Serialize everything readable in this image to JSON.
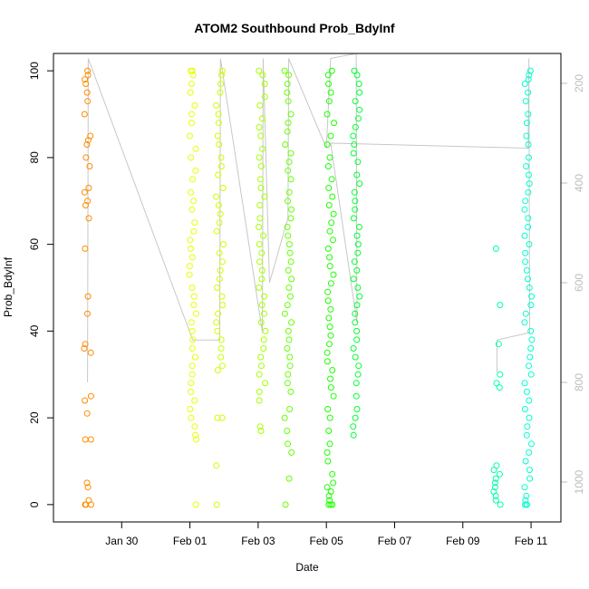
{
  "chart_data": {
    "type": "scatter",
    "title": "ATOM2 Southbound Prob_BdyInf",
    "xlabel": "Date",
    "ylabel": "Prob_BdyInf",
    "x_unit": "date",
    "xlim": [
      "2018-01-28T00:00",
      "2018-02-11T21:00"
    ],
    "ylim": [
      -4,
      104
    ],
    "x_ticks": [
      {
        "date": "2018-01-30T00:00",
        "label": "Jan 30"
      },
      {
        "date": "2018-02-01T00:00",
        "label": "Feb 01"
      },
      {
        "date": "2018-02-03T00:00",
        "label": "Feb 03"
      },
      {
        "date": "2018-02-05T00:00",
        "label": "Feb 05"
      },
      {
        "date": "2018-02-07T00:00",
        "label": "Feb 07"
      },
      {
        "date": "2018-02-09T00:00",
        "label": "Feb 09"
      },
      {
        "date": "2018-02-11T00:00",
        "label": "Feb 11"
      }
    ],
    "y_ticks": [
      0,
      20,
      40,
      60,
      80,
      100
    ],
    "right_axis": {
      "label": "",
      "lim": [
        1080,
        140
      ],
      "ticks": [
        200,
        400,
        600,
        800,
        1000
      ],
      "color": "#bdbdbd"
    },
    "marker": "open-circle",
    "grid": false,
    "legend": "none",
    "series": [
      {
        "date": "2018-01-29T00:00",
        "color": "#ff8c00",
        "y": [
          100,
          99,
          98,
          97,
          95,
          93,
          90,
          85,
          84,
          83,
          80,
          78,
          73,
          72,
          70,
          69,
          66,
          59,
          48,
          44,
          37,
          36,
          35,
          25,
          24,
          21,
          15,
          15,
          5,
          4,
          1,
          0,
          0,
          0
        ]
      },
      {
        "date": "2018-02-01T02:00",
        "color": "#e6ff00",
        "y": [
          100,
          100,
          99,
          97,
          95,
          92,
          90,
          88,
          85,
          82,
          80,
          77,
          75,
          72,
          70,
          68,
          65,
          63,
          61,
          59,
          57,
          55,
          53,
          50,
          48,
          46,
          44,
          42,
          40,
          38,
          36,
          34,
          32,
          30,
          28,
          26,
          24,
          22,
          20,
          18,
          16,
          15,
          0
        ]
      },
      {
        "date": "2018-02-01T21:00",
        "color": "#ccff00",
        "y": [
          100,
          99,
          97,
          95,
          92,
          90,
          88,
          85,
          83,
          80,
          78,
          76,
          73,
          71,
          69,
          67,
          65,
          63,
          60,
          58,
          56,
          54,
          52,
          50,
          48,
          46,
          44,
          42,
          40,
          38,
          36,
          34,
          32,
          31,
          20,
          20,
          9,
          0
        ]
      },
      {
        "date": "2018-02-03T03:00",
        "color": "#a6ff00",
        "y": [
          100,
          99,
          97,
          94,
          92,
          89,
          87,
          85,
          82,
          80,
          78,
          75,
          73,
          71,
          69,
          66,
          64,
          62,
          60,
          58,
          56,
          54,
          52,
          50,
          48,
          46,
          44,
          42,
          40,
          38,
          36,
          34,
          32,
          30,
          28,
          26,
          24,
          18,
          17
        ]
      },
      {
        "date": "2018-02-03T21:00",
        "color": "#66ff00",
        "y": [
          100,
          99,
          97,
          95,
          93,
          90,
          88,
          86,
          83,
          81,
          79,
          77,
          75,
          72,
          70,
          68,
          66,
          64,
          62,
          60,
          58,
          56,
          54,
          52,
          50,
          48,
          46,
          44,
          42,
          40,
          38,
          36,
          34,
          32,
          30,
          28,
          26,
          22,
          20,
          17,
          14,
          12,
          6,
          0
        ]
      },
      {
        "date": "2018-02-05T03:00",
        "color": "#1aff00",
        "y": [
          100,
          99,
          97,
          95,
          93,
          90,
          88,
          85,
          83,
          80,
          78,
          75,
          73,
          71,
          69,
          67,
          65,
          63,
          61,
          59,
          57,
          55,
          53,
          51,
          49,
          47,
          45,
          43,
          41,
          39,
          37,
          35,
          33,
          31,
          29,
          27,
          25,
          22,
          20,
          17,
          14,
          12,
          10,
          7,
          5,
          4,
          3,
          2,
          1,
          0,
          0,
          0
        ]
      },
      {
        "date": "2018-02-05T21:00",
        "color": "#00ff33",
        "y": [
          100,
          99,
          97,
          95,
          93,
          91,
          89,
          87,
          85,
          83,
          81,
          79,
          76,
          74,
          72,
          70,
          68,
          66,
          64,
          62,
          60,
          58,
          56,
          54,
          52,
          50,
          48,
          46,
          44,
          42,
          40,
          38,
          36,
          34,
          32,
          30,
          28,
          25,
          22,
          20,
          18,
          16
        ]
      },
      {
        "date": "2018-02-10T00:00",
        "color": "#00ffaa",
        "y": [
          59,
          46,
          37,
          30,
          28,
          27,
          9,
          8,
          7,
          6,
          5,
          4,
          3,
          2,
          1,
          0
        ]
      },
      {
        "date": "2018-02-10T22:00",
        "color": "#00ffcc",
        "y": [
          100,
          99,
          98,
          97,
          95,
          93,
          90,
          88,
          85,
          83,
          80,
          78,
          76,
          74,
          72,
          70,
          68,
          66,
          64,
          62,
          60,
          58,
          56,
          54,
          52,
          50,
          48,
          46,
          44,
          42,
          40,
          38,
          36,
          34,
          32,
          30,
          28,
          26,
          24,
          22,
          20,
          18,
          16,
          14,
          12,
          10,
          8,
          6,
          4,
          2,
          1,
          0,
          0,
          0
        ]
      }
    ],
    "depth_trace": {
      "axis": "right",
      "color": "#c8c8c8",
      "points": [
        {
          "date": "2018-01-29T00:00",
          "v": 800
        },
        {
          "date": "2018-01-29T00:30",
          "v": 150
        },
        {
          "date": "2018-02-01T02:00",
          "v": 715
        },
        {
          "date": "2018-02-01T21:00",
          "v": 715
        },
        {
          "date": "2018-02-01T21:30",
          "v": 150
        },
        {
          "date": "2018-02-03T03:00",
          "v": 700
        },
        {
          "date": "2018-02-03T03:30",
          "v": 150
        },
        {
          "date": "2018-02-03T08:00",
          "v": 600
        },
        {
          "date": "2018-02-03T21:00",
          "v": 470
        },
        {
          "date": "2018-02-03T21:30",
          "v": 150
        },
        {
          "date": "2018-02-05T00:00",
          "v": 330
        },
        {
          "date": "2018-02-05T03:00",
          "v": 150
        },
        {
          "date": "2018-02-05T21:00",
          "v": 140
        },
        {
          "date": "2018-02-05T21:30",
          "v": 680
        },
        {
          "date": "2018-02-05T03:00",
          "v": 320
        },
        {
          "date": "2018-02-10T22:00",
          "v": 330
        },
        {
          "date": "2018-02-10T22:30",
          "v": 150
        },
        {
          "date": "2018-02-10T23:00",
          "v": 700
        },
        {
          "date": "2018-02-10T00:00",
          "v": 715
        },
        {
          "date": "2018-02-10T00:00",
          "v": 780
        }
      ]
    }
  }
}
